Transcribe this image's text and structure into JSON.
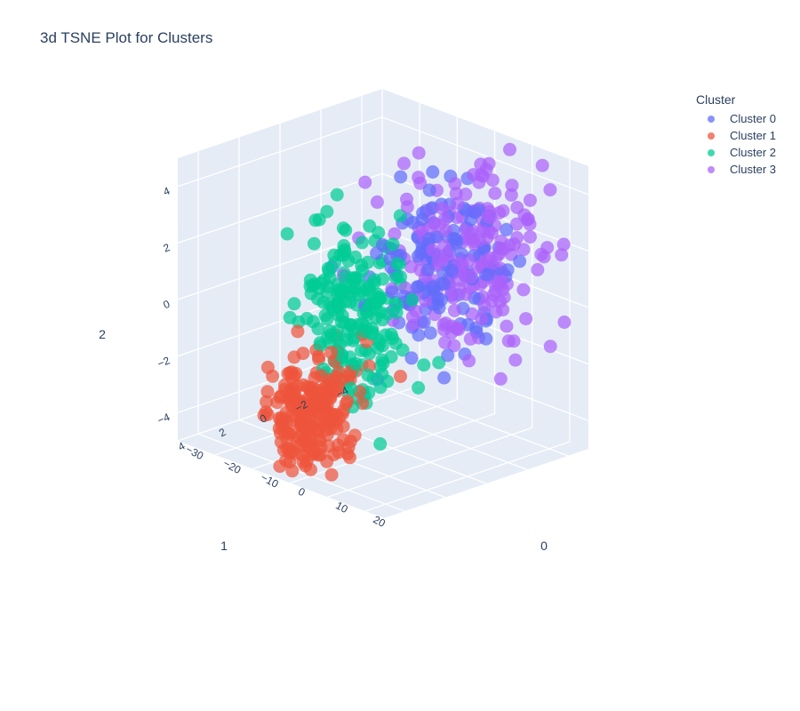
{
  "chart_data": {
    "type": "scatter3d",
    "title": "3d TSNE Plot for Clusters",
    "axes": {
      "x": {
        "title": "0",
        "range": [
          -30,
          25
        ],
        "ticks": [
          -30,
          -20,
          -10,
          0,
          10,
          20
        ]
      },
      "y": {
        "title": "1",
        "range": [
          -5,
          5
        ],
        "ticks": [
          -4,
          -2,
          0,
          2,
          4
        ]
      },
      "z": {
        "title": "2",
        "range": [
          -5,
          5
        ],
        "ticks": [
          -4,
          -2,
          0,
          2,
          4
        ]
      }
    },
    "legend": {
      "title": "Cluster",
      "placement": "top-right"
    },
    "series": [
      {
        "name": "Cluster 0",
        "color": "#636efa",
        "center": [
          5,
          -1.5,
          1.4
        ],
        "spread": [
          5,
          1.5,
          1.5
        ],
        "count": 130
      },
      {
        "name": "Cluster 1",
        "color": "#ef553b",
        "center": [
          -2,
          3.5,
          -3.0
        ],
        "spread": [
          4,
          0.9,
          1.0
        ],
        "count": 220
      },
      {
        "name": "Cluster 2",
        "color": "#00cc96",
        "center": [
          -2,
          1.5,
          0.3
        ],
        "spread": [
          5,
          1.0,
          1.5
        ],
        "count": 200
      },
      {
        "name": "Cluster 3",
        "color": "#ab63fa",
        "center": [
          7,
          -2.5,
          1.5
        ],
        "spread": [
          6,
          1.5,
          1.6
        ],
        "count": 200
      }
    ]
  }
}
